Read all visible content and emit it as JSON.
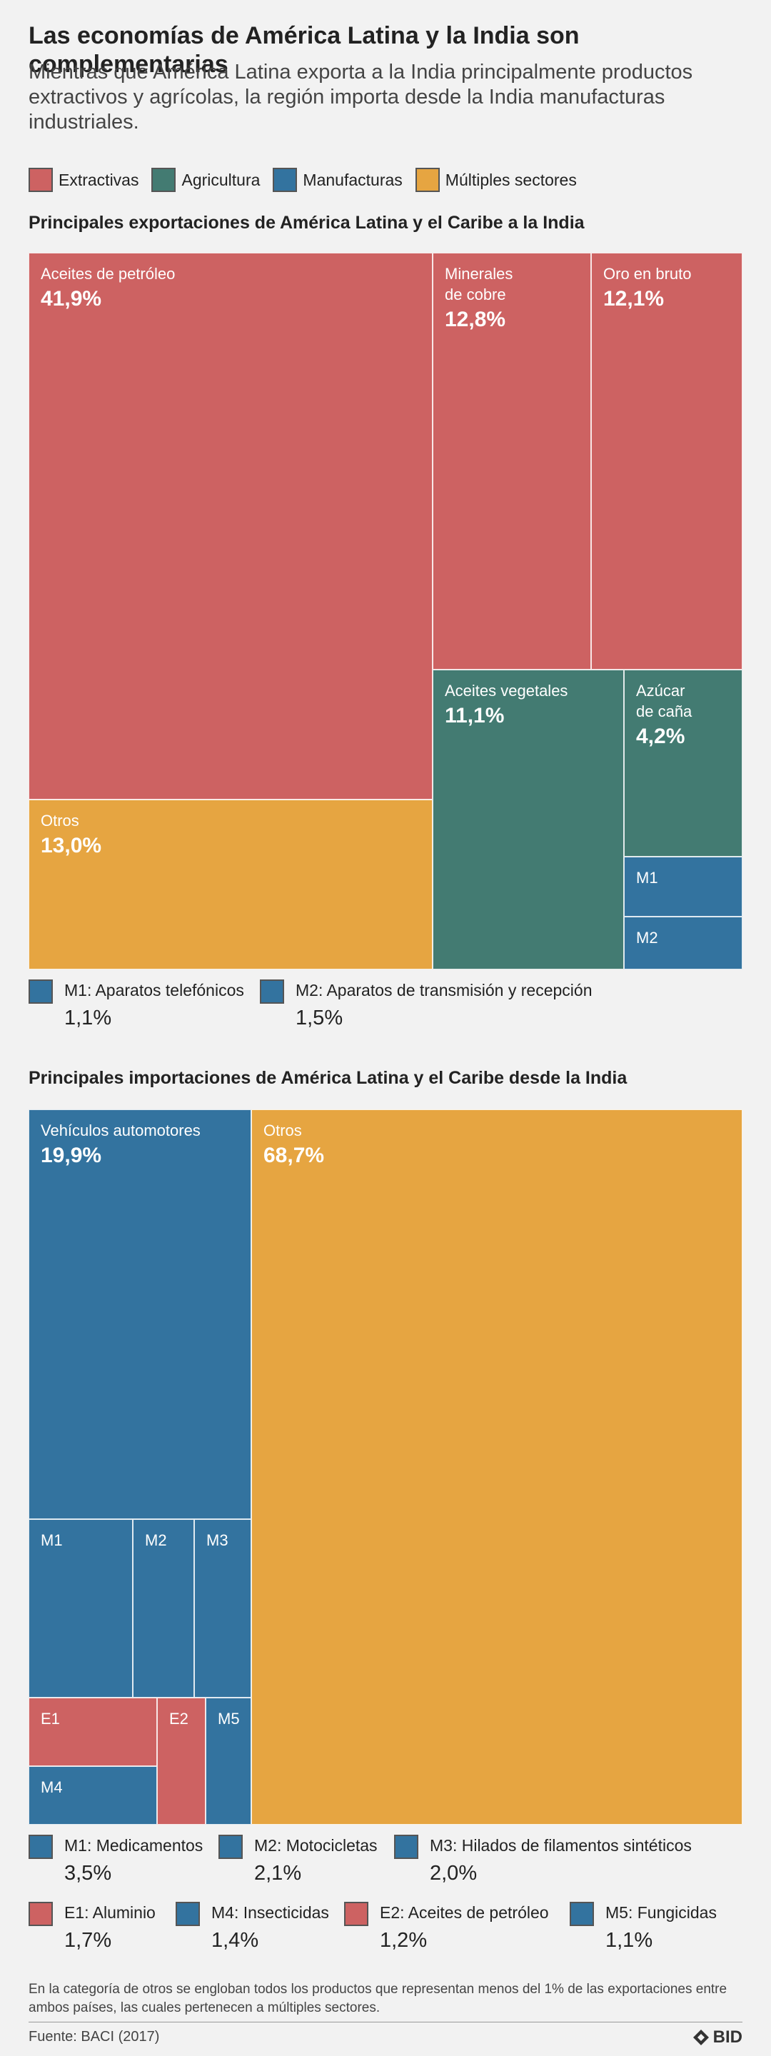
{
  "title": "Las economías de América Latina y la India son complementarias",
  "subtitle": "Mientras que América Latina exporta a la India principalmente productos extractivos y agrícolas, la región importa desde la India manufacturas industriales.",
  "colors": {
    "extractivas": "#cd6262",
    "agricultura": "#437b72",
    "manufacturas": "#33739f",
    "multiples": "#e6a541"
  },
  "legend": [
    {
      "key": "extractivas",
      "label": "Extractivas"
    },
    {
      "key": "agricultura",
      "label": "Agricultura"
    },
    {
      "key": "manufacturas",
      "label": "Manufacturas"
    },
    {
      "key": "multiples",
      "label": "Múltiples sectores"
    }
  ],
  "chart_data": [
    {
      "type": "treemap",
      "title": "Principales exportaciones de América Latina y el Caribe a la India",
      "cells": [
        {
          "label": "Aceites de petróleo",
          "value": 41.9,
          "display": "41,9%",
          "sector": "extractivas"
        },
        {
          "label": "Otros",
          "value": 13.0,
          "display": "13,0%",
          "sector": "multiples"
        },
        {
          "label": "Minerales\nde cobre",
          "value": 12.8,
          "display": "12,8%",
          "sector": "extractivas"
        },
        {
          "label": "Oro en bruto",
          "value": 12.1,
          "display": "12,1%",
          "sector": "extractivas"
        },
        {
          "label": "Aceites vegetales",
          "value": 11.1,
          "display": "11,1%",
          "sector": "agricultura"
        },
        {
          "label": "Azúcar\nde caña",
          "value": 4.2,
          "display": "4,2%",
          "sector": "agricultura"
        },
        {
          "label": "M1",
          "value": 1.1,
          "display": "",
          "sector": "manufacturas"
        },
        {
          "label": "M2",
          "value": 1.5,
          "display": "",
          "sector": "manufacturas"
        }
      ],
      "notes": [
        {
          "label": "M1: Aparatos telefónicos",
          "value": "1,1%",
          "sector": "manufacturas"
        },
        {
          "label": "M2: Aparatos de transmisión y recepción",
          "value": "1,5%",
          "sector": "manufacturas"
        }
      ]
    },
    {
      "type": "treemap",
      "title": "Principales importaciones de América Latina y el Caribe desde la India",
      "cells": [
        {
          "label": "Vehículos automotores",
          "value": 19.9,
          "display": "19,9%",
          "sector": "manufacturas"
        },
        {
          "label": "Otros",
          "value": 68.7,
          "display": "68,7%",
          "sector": "multiples"
        },
        {
          "label": "M1",
          "value": 3.5,
          "display": "",
          "sector": "manufacturas"
        },
        {
          "label": "M2",
          "value": 2.1,
          "display": "",
          "sector": "manufacturas"
        },
        {
          "label": "M3",
          "value": 2.0,
          "display": "",
          "sector": "manufacturas"
        },
        {
          "label": "E1",
          "value": 1.7,
          "display": "",
          "sector": "extractivas"
        },
        {
          "label": "M4",
          "value": 1.4,
          "display": "",
          "sector": "manufacturas"
        },
        {
          "label": "E2",
          "value": 1.2,
          "display": "",
          "sector": "extractivas"
        },
        {
          "label": "M5",
          "value": 1.1,
          "display": "",
          "sector": "manufacturas"
        }
      ],
      "notes": [
        {
          "label": "M1: Medicamentos",
          "value": "3,5%",
          "sector": "manufacturas"
        },
        {
          "label": "M2: Motocicletas",
          "value": "2,1%",
          "sector": "manufacturas"
        },
        {
          "label": "M3: Hilados de filamentos sintéticos",
          "value": "2,0%",
          "sector": "manufacturas"
        },
        {
          "label": "E1: Aluminio",
          "value": "1,7%",
          "sector": "extractivas"
        },
        {
          "label": "M4: Insecticidas",
          "value": "1,4%",
          "sector": "manufacturas"
        },
        {
          "label": "E2: Aceites de petróleo",
          "value": "1,2%",
          "sector": "extractivas"
        },
        {
          "label": "M5: Fungicidas",
          "value": "1,1%",
          "sector": "manufacturas"
        }
      ]
    }
  ],
  "footnote": "En la categoría de otros se engloban todos los productos que representan menos del 1% de las exportaciones entre ambos países, las cuales pertenecen a múltiples sectores.",
  "source": "Fuente: BACI (2017)",
  "logo_text": "BID"
}
